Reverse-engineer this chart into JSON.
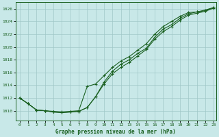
{
  "title": "Graphe pression niveau de la mer (hPa)",
  "bg_color": "#c8e8e8",
  "grid_color": "#a0c8c8",
  "line_color": "#1a6020",
  "x_min": 0,
  "x_max": 23,
  "y_min": 1008.5,
  "y_max": 1027.0,
  "y_ticks": [
    1010,
    1012,
    1014,
    1016,
    1018,
    1020,
    1022,
    1024,
    1026
  ],
  "x_ticks": [
    0,
    1,
    2,
    3,
    4,
    5,
    6,
    7,
    8,
    9,
    10,
    11,
    12,
    13,
    14,
    15,
    16,
    17,
    18,
    19,
    20,
    21,
    22,
    23
  ],
  "series1_x": [
    0,
    1,
    2,
    3,
    4,
    5,
    6,
    7,
    8,
    9,
    10,
    11,
    12,
    13,
    14,
    15,
    16,
    17,
    18,
    19,
    20,
    21,
    22,
    23
  ],
  "series1_y": [
    1012.0,
    1011.1,
    1010.1,
    1010.0,
    1009.8,
    1009.7,
    1009.8,
    1009.9,
    1010.5,
    1012.2,
    1014.2,
    1015.8,
    1016.8,
    1017.6,
    1018.6,
    1019.6,
    1021.2,
    1022.4,
    1023.2,
    1024.2,
    1025.0,
    1025.3,
    1025.6,
    1026.1
  ],
  "series2_x": [
    0,
    1,
    2,
    3,
    4,
    5,
    6,
    7,
    8,
    9,
    10,
    11,
    12,
    13,
    14,
    15,
    16,
    17,
    18,
    19,
    20,
    21,
    22,
    23
  ],
  "series2_y": [
    1012.0,
    1011.1,
    1010.1,
    1010.0,
    1009.8,
    1009.7,
    1009.8,
    1009.9,
    1010.5,
    1012.2,
    1014.5,
    1016.2,
    1017.3,
    1018.0,
    1019.0,
    1019.8,
    1021.5,
    1022.8,
    1023.5,
    1024.5,
    1025.2,
    1025.5,
    1025.7,
    1026.2
  ],
  "series3_x": [
    0,
    1,
    2,
    3,
    4,
    5,
    6,
    7,
    8,
    9,
    10,
    11,
    12,
    13,
    14,
    15,
    16,
    17,
    18,
    19,
    20,
    21,
    22,
    23
  ],
  "series3_y": [
    1012.0,
    1011.1,
    1010.1,
    1010.0,
    1009.9,
    1009.8,
    1009.9,
    1010.0,
    1013.8,
    1014.2,
    1015.5,
    1016.8,
    1017.8,
    1018.5,
    1019.5,
    1020.5,
    1022.0,
    1023.2,
    1024.0,
    1024.8,
    1025.4,
    1025.5,
    1025.8,
    1026.2
  ]
}
